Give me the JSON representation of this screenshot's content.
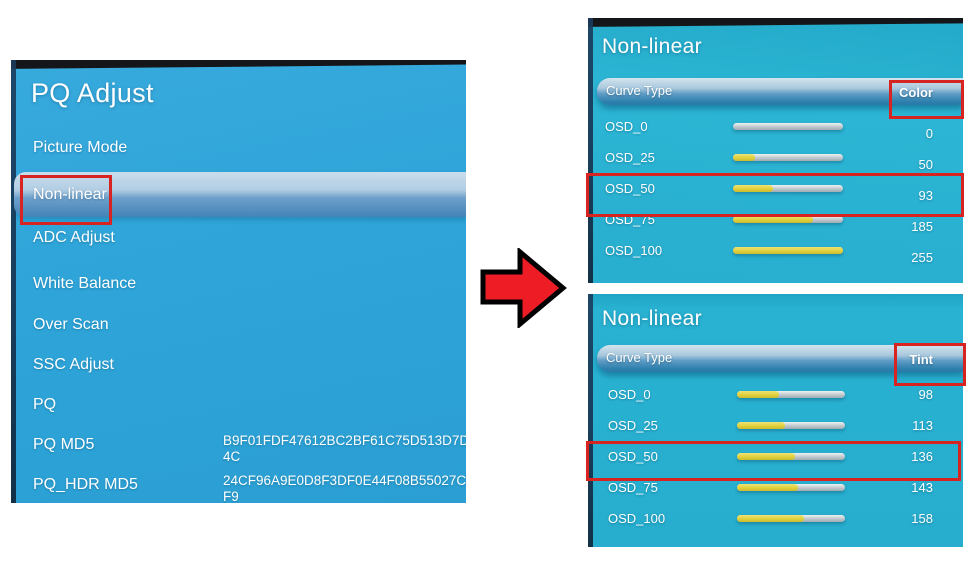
{
  "colors": {
    "left_panel_bg": "#2ea4d8",
    "right_panel_bg": "#29b1d0",
    "selected_bar": "#88aed4",
    "slider_track": "#b9c3c9",
    "slider_fill_yellow": "#e0d03c",
    "annotation_red": "#d82420",
    "arrow_red": "#ee1c24",
    "bezel_black": "#15161a",
    "text": "#ffffff"
  },
  "left_panel": {
    "title": "PQ Adjust",
    "items": [
      {
        "label": "Picture Mode"
      },
      {
        "label": "Non-linear",
        "selected": true
      },
      {
        "label": "ADC Adjust"
      },
      {
        "label": "White Balance"
      },
      {
        "label": "Over Scan"
      },
      {
        "label": "SSC Adjust"
      },
      {
        "label": "PQ"
      },
      {
        "label": "PQ MD5",
        "value": "B9F01FDF47612BC2BF61C75D513D7D4C"
      },
      {
        "label": "PQ_HDR MD5",
        "value": "24CF96A9E0D8F3DF0E44F08B55027CF9"
      }
    ]
  },
  "color_panel": {
    "title": "Non-linear",
    "header_label": "Curve Type",
    "header_value": "Color",
    "max_value": 255,
    "highlighted_row": "OSD_50",
    "rows": [
      {
        "label": "OSD_0",
        "value": 0
      },
      {
        "label": "OSD_25",
        "value": 50
      },
      {
        "label": "OSD_50",
        "value": 93
      },
      {
        "label": "OSD_75",
        "value": 185
      },
      {
        "label": "OSD_100",
        "value": 255
      }
    ]
  },
  "tint_panel": {
    "title": "Non-linear",
    "header_label": "Curve Type",
    "header_value": "Tint",
    "max_value": 255,
    "highlighted_row": "OSD_50",
    "rows": [
      {
        "label": "OSD_0",
        "value": 98
      },
      {
        "label": "OSD_25",
        "value": 113
      },
      {
        "label": "OSD_50",
        "value": 136
      },
      {
        "label": "OSD_75",
        "value": 143
      },
      {
        "label": "OSD_100",
        "value": 158
      }
    ]
  },
  "annotations": {
    "boxes": [
      {
        "name": "highlight-box-nonlinear-item"
      },
      {
        "name": "highlight-box-color-value"
      },
      {
        "name": "highlight-box-color-osd50-row"
      },
      {
        "name": "highlight-box-tint-value"
      },
      {
        "name": "highlight-box-tint-osd50-row"
      }
    ],
    "arrow": {
      "name": "red-right-arrow"
    }
  }
}
